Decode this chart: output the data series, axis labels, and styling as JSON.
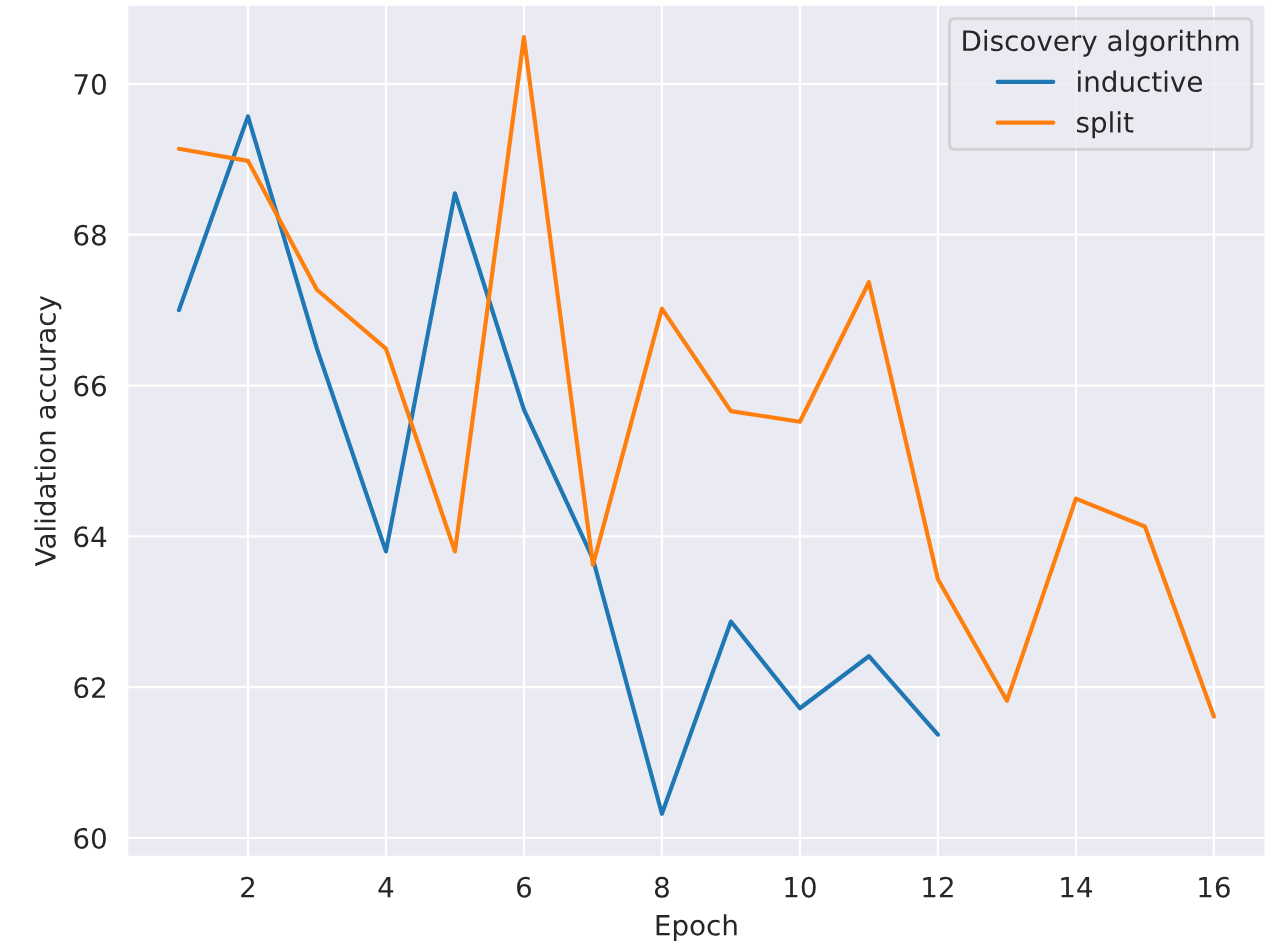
{
  "chart_data": {
    "type": "line",
    "xlabel": "Epoch",
    "ylabel": "Validation accuracy",
    "legend_title": "Discovery algorithm",
    "legend": "top right",
    "grid": true,
    "series": [
      {
        "name": "inductive",
        "color": "#1f77b4",
        "x": [
          1,
          2,
          3,
          4,
          5,
          6,
          7,
          8,
          9,
          10,
          11,
          12
        ],
        "values": [
          67.0,
          69.57,
          66.49,
          63.8,
          68.55,
          65.68,
          63.7,
          60.32,
          62.87,
          61.72,
          62.41,
          61.37
        ]
      },
      {
        "name": "split",
        "color": "#ff7f0e",
        "x": [
          1,
          2,
          3,
          4,
          5,
          6,
          7,
          8,
          9,
          10,
          11,
          12,
          13,
          14,
          15,
          16
        ],
        "values": [
          69.14,
          68.98,
          67.27,
          66.49,
          63.8,
          70.62,
          63.62,
          67.02,
          65.66,
          65.52,
          67.37,
          63.43,
          61.82,
          64.5,
          64.13,
          61.61
        ]
      }
    ],
    "xlim": [
      0.25,
      16.75
    ],
    "ylim": [
      59.75,
      71.05
    ],
    "xticks": [
      2,
      4,
      6,
      8,
      10,
      12,
      14,
      16
    ],
    "yticks": [
      60,
      62,
      64,
      66,
      68,
      70
    ]
  }
}
